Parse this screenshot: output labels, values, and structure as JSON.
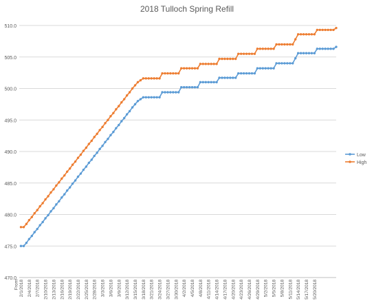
{
  "chart_data": {
    "type": "line",
    "title": "2018 Tulloch Spring Refill",
    "xlabel": "",
    "ylabel": "",
    "ylim": [
      470,
      510
    ],
    "ytick_values": [
      470,
      475,
      480,
      485,
      490,
      495,
      500,
      505,
      510
    ],
    "ytick_labels": [
      "470.0",
      "475.0",
      "480.0",
      "485.0",
      "490.0",
      "495.0",
      "500.0",
      "505.0",
      "510.0"
    ],
    "x_first_label": "From",
    "x_start_date": "2018-02-01",
    "x_step_days": 1,
    "xtick_labels": [
      "2/1/2018",
      "2/4/2018",
      "2/7/2018",
      "2/10/2018",
      "2/13/2018",
      "2/16/2018",
      "2/19/2018",
      "2/22/2018",
      "2/25/2018",
      "2/28/2018",
      "3/3/2018",
      "3/6/2018",
      "3/9/2018",
      "3/12/2018",
      "3/15/2018",
      "3/18/2018",
      "3/21/2018",
      "3/24/2018",
      "3/27/2018",
      "3/30/2018",
      "4/2/2018",
      "4/5/2018",
      "4/8/2018",
      "4/11/2018",
      "4/14/2018",
      "4/17/2018",
      "4/20/2018",
      "4/23/2018",
      "4/26/2018",
      "4/29/2018",
      "5/2/2018",
      "5/5/2018",
      "5/8/2018",
      "5/11/2018",
      "5/14/2018",
      "5/17/2018",
      "5/20/2018"
    ],
    "grid": "horizontal",
    "legend_position": "right",
    "series": [
      {
        "name": "Low",
        "color": "#5b9bd5",
        "values": [
          475.0,
          475.0,
          475.5,
          476.1,
          476.6,
          477.2,
          477.7,
          478.3,
          478.8,
          479.4,
          479.9,
          480.5,
          481.0,
          481.6,
          482.1,
          482.7,
          483.2,
          483.8,
          484.3,
          484.9,
          485.4,
          486.0,
          486.5,
          487.1,
          487.6,
          488.2,
          488.7,
          489.3,
          489.8,
          490.4,
          490.9,
          491.5,
          492.0,
          492.6,
          493.1,
          493.7,
          494.2,
          494.8,
          495.3,
          495.9,
          496.4,
          497.0,
          497.5,
          498.0,
          498.3,
          498.6,
          498.6,
          498.6,
          498.6,
          498.6,
          498.6,
          498.6,
          499.4,
          499.4,
          499.4,
          499.4,
          499.4,
          499.4,
          499.4,
          500.2,
          500.2,
          500.2,
          500.2,
          500.2,
          500.2,
          500.2,
          501.0,
          501.0,
          501.0,
          501.0,
          501.0,
          501.0,
          501.0,
          501.7,
          501.7,
          501.7,
          501.7,
          501.7,
          501.7,
          501.7,
          502.4,
          502.4,
          502.4,
          502.4,
          502.4,
          502.4,
          502.4,
          503.2,
          503.2,
          503.2,
          503.2,
          503.2,
          503.2,
          503.2,
          504.0,
          504.0,
          504.0,
          504.0,
          504.0,
          504.0,
          504.0,
          504.8,
          505.6,
          505.6,
          505.6,
          505.6,
          505.6,
          505.6,
          505.6,
          506.3,
          506.3,
          506.3,
          506.3,
          506.3,
          506.3,
          506.3,
          506.6
        ]
      },
      {
        "name": "High",
        "color": "#ed7d31",
        "values": [
          478.0,
          478.0,
          478.5,
          479.1,
          479.6,
          480.2,
          480.7,
          481.3,
          481.8,
          482.4,
          482.9,
          483.5,
          484.0,
          484.6,
          485.1,
          485.7,
          486.2,
          486.8,
          487.3,
          487.9,
          488.4,
          489.0,
          489.5,
          490.1,
          490.6,
          491.2,
          491.7,
          492.3,
          492.8,
          493.4,
          493.9,
          494.5,
          495.0,
          495.6,
          496.1,
          496.7,
          497.2,
          497.8,
          498.3,
          498.9,
          499.4,
          500.0,
          500.5,
          501.0,
          501.3,
          501.6,
          501.6,
          501.6,
          501.6,
          501.6,
          501.6,
          501.6,
          502.4,
          502.4,
          502.4,
          502.4,
          502.4,
          502.4,
          502.4,
          503.2,
          503.2,
          503.2,
          503.2,
          503.2,
          503.2,
          503.2,
          503.9,
          503.9,
          503.9,
          503.9,
          503.9,
          503.9,
          503.9,
          504.7,
          504.7,
          504.7,
          504.7,
          504.7,
          504.7,
          504.7,
          505.5,
          505.5,
          505.5,
          505.5,
          505.5,
          505.5,
          505.5,
          506.3,
          506.3,
          506.3,
          506.3,
          506.3,
          506.3,
          506.3,
          507.0,
          507.0,
          507.0,
          507.0,
          507.0,
          507.0,
          507.0,
          507.8,
          508.6,
          508.6,
          508.6,
          508.6,
          508.6,
          508.6,
          508.6,
          509.3,
          509.3,
          509.3,
          509.3,
          509.3,
          509.3,
          509.3,
          509.6
        ]
      }
    ]
  }
}
